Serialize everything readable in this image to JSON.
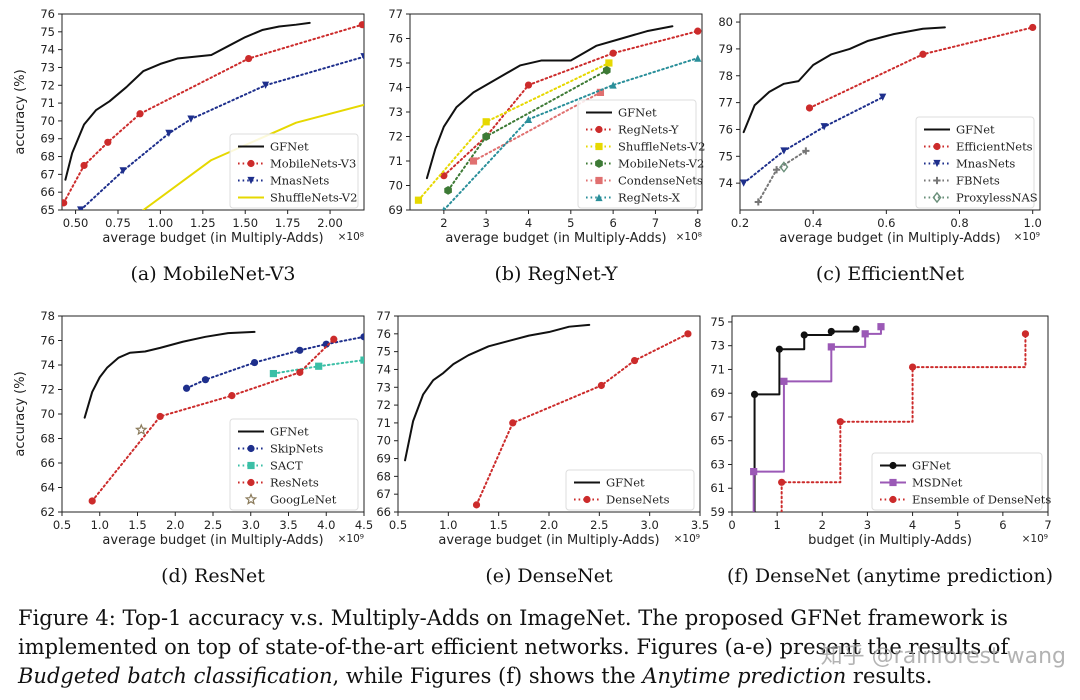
{
  "figure": {
    "caption_parts": [
      "Figure 4: Top-1 accuracy v.s. Multiply-Adds on ImageNet. The proposed GFNet framework is implemented on top of state-of-the-art efficient networks. Figures (a-e) present the results of ",
      "Budgeted batch classification",
      ", while Figures (f) shows the ",
      "Anytime prediction",
      " results."
    ],
    "watermark": "知乎 @rainforest wang"
  },
  "chart_data": [
    {
      "id": "a",
      "type": "line",
      "subtitle": "(a) MobileNet-V3",
      "xlabel": "average budget (in Multiply-Adds)",
      "ylabel": "accuracy (%)",
      "xexp": "×10⁸",
      "xlim": [
        0.42,
        2.2
      ],
      "ylim": [
        65,
        76
      ],
      "xticks": [
        0.5,
        0.75,
        1.0,
        1.25,
        1.5,
        1.75,
        2.0
      ],
      "xtick_labels": [
        "0.50",
        "0.75",
        "1.00",
        "1.25",
        "1.50",
        "1.75",
        "2.00"
      ],
      "yticks": [
        65,
        66,
        67,
        68,
        69,
        70,
        71,
        72,
        73,
        74,
        75,
        76
      ],
      "ytick_labels": [
        "65",
        "66",
        "67",
        "68",
        "69",
        "70",
        "71",
        "72",
        "73",
        "74",
        "75",
        "76"
      ],
      "legend_position": "lower-right",
      "series": [
        {
          "name": "GFNet",
          "color": "#111111",
          "style": "solid",
          "marker": "none",
          "x": [
            0.44,
            0.48,
            0.55,
            0.62,
            0.7,
            0.8,
            0.9,
            1.0,
            1.1,
            1.2,
            1.3,
            1.4,
            1.5,
            1.6,
            1.7,
            1.8,
            1.88
          ],
          "y": [
            66.7,
            68.2,
            69.8,
            70.6,
            71.1,
            71.9,
            72.8,
            73.2,
            73.5,
            73.6,
            73.7,
            74.2,
            74.7,
            75.1,
            75.3,
            75.4,
            75.5
          ]
        },
        {
          "name": "MobileNets-V3",
          "color": "#cc2b2b",
          "style": "dotted",
          "marker": "circle",
          "x": [
            0.43,
            0.55,
            0.69,
            0.88,
            1.52,
            2.19
          ],
          "y": [
            65.4,
            67.5,
            68.8,
            70.4,
            73.5,
            75.4
          ]
        },
        {
          "name": "MnasNets",
          "color": "#1e2f8c",
          "style": "dotted",
          "marker": "triangle-down",
          "x": [
            0.53,
            0.78,
            1.05,
            1.18,
            1.62,
            2.2
          ],
          "y": [
            65.0,
            67.2,
            69.3,
            70.1,
            72.0,
            73.6
          ]
        },
        {
          "name": "ShuffleNets-V2",
          "color": "#e6d800",
          "style": "solid",
          "marker": "none",
          "x": [
            0.9,
            1.3,
            1.8,
            2.2
          ],
          "y": [
            65.0,
            67.8,
            69.9,
            70.9
          ]
        }
      ]
    },
    {
      "id": "b",
      "type": "line",
      "subtitle": "(b) RegNet-Y",
      "xlabel": "average budget (in Multiply-Adds)",
      "ylabel": "",
      "xexp": "×10⁸",
      "xlim": [
        1.2,
        8.1
      ],
      "ylim": [
        69,
        77
      ],
      "xticks": [
        2,
        3,
        4,
        5,
        6,
        7,
        8
      ],
      "xtick_labels": [
        "2",
        "3",
        "4",
        "5",
        "6",
        "7",
        "8"
      ],
      "yticks": [
        69,
        70,
        71,
        72,
        73,
        74,
        75,
        76,
        77
      ],
      "ytick_labels": [
        "69",
        "70",
        "71",
        "72",
        "73",
        "74",
        "75",
        "76",
        "77"
      ],
      "legend_position": "lower-right",
      "series": [
        {
          "name": "GFNet",
          "color": "#111111",
          "style": "solid",
          "marker": "none",
          "x": [
            1.6,
            1.8,
            2.0,
            2.3,
            2.7,
            3.2,
            3.8,
            4.3,
            5.0,
            5.6,
            6.2,
            6.8,
            7.4
          ],
          "y": [
            70.3,
            71.5,
            72.4,
            73.2,
            73.8,
            74.3,
            74.9,
            75.1,
            75.1,
            75.7,
            76.0,
            76.3,
            76.5
          ]
        },
        {
          "name": "RegNets-Y",
          "color": "#cc2b2b",
          "style": "dotted",
          "marker": "circle",
          "x": [
            2.0,
            3.0,
            4.0,
            6.0,
            8.0
          ],
          "y": [
            70.4,
            72.0,
            74.1,
            75.4,
            76.3
          ]
        },
        {
          "name": "ShuffleNets-V2",
          "color": "#e6d800",
          "style": "dotted",
          "marker": "square",
          "x": [
            1.4,
            3.0,
            5.9
          ],
          "y": [
            69.4,
            72.6,
            75.0
          ]
        },
        {
          "name": "MobileNets-V2",
          "color": "#3d7a35",
          "style": "dotted",
          "marker": "hexagon",
          "x": [
            2.1,
            3.0,
            5.85
          ],
          "y": [
            69.8,
            72.0,
            74.7
          ]
        },
        {
          "name": "CondenseNets",
          "color": "#e07070",
          "style": "dotted",
          "marker": "square",
          "x": [
            2.7,
            5.7
          ],
          "y": [
            71.0,
            73.8
          ]
        },
        {
          "name": "RegNets-X",
          "color": "#2a8f9a",
          "style": "dotted",
          "marker": "triangle-up",
          "x": [
            2.0,
            4.0,
            6.0,
            8.0
          ],
          "y": [
            69.0,
            72.7,
            74.1,
            75.2
          ]
        }
      ]
    },
    {
      "id": "c",
      "type": "line",
      "subtitle": "(c) EfficientNet",
      "xlabel": "average budget (in Multiply-Adds)",
      "ylabel": "",
      "xexp": "×10⁹",
      "xlim": [
        0.2,
        1.02
      ],
      "ylim": [
        73,
        80.3
      ],
      "xticks": [
        0.2,
        0.4,
        0.6,
        0.8,
        1.0
      ],
      "xtick_labels": [
        "0.2",
        "0.4",
        "0.6",
        "0.8",
        "1.0"
      ],
      "yticks": [
        74,
        75,
        76,
        77,
        78,
        79,
        80
      ],
      "ytick_labels": [
        "74",
        "75",
        "76",
        "77",
        "78",
        "79",
        "80"
      ],
      "legend_position": "lower-right",
      "series": [
        {
          "name": "GFNet",
          "color": "#111111",
          "style": "solid",
          "marker": "none",
          "x": [
            0.21,
            0.24,
            0.28,
            0.32,
            0.36,
            0.4,
            0.45,
            0.5,
            0.55,
            0.62,
            0.7,
            0.76
          ],
          "y": [
            75.9,
            76.9,
            77.4,
            77.7,
            77.8,
            78.4,
            78.8,
            79.0,
            79.3,
            79.55,
            79.75,
            79.8
          ]
        },
        {
          "name": "EfficientNets",
          "color": "#cc2b2b",
          "style": "dotted",
          "marker": "circle",
          "x": [
            0.39,
            0.7,
            1.0
          ],
          "y": [
            76.8,
            78.8,
            79.8
          ]
        },
        {
          "name": "MnasNets",
          "color": "#1e2f8c",
          "style": "dotted",
          "marker": "triangle-down",
          "x": [
            0.21,
            0.32,
            0.43,
            0.59
          ],
          "y": [
            74.0,
            75.2,
            76.1,
            77.2
          ]
        },
        {
          "name": "FBNets",
          "color": "#777777",
          "style": "dotted",
          "marker": "plus",
          "x": [
            0.25,
            0.3,
            0.38
          ],
          "y": [
            73.3,
            74.5,
            75.2
          ]
        },
        {
          "name": "ProxylessNAS",
          "color": "#6a8f7a",
          "style": "dotted",
          "marker": "diamond",
          "x": [
            0.32
          ],
          "y": [
            74.6
          ]
        }
      ]
    },
    {
      "id": "d",
      "type": "line",
      "subtitle": "(d) ResNet",
      "xlabel": "average budget (in Multiply-Adds)",
      "ylabel": "accuracy (%)",
      "xexp": "×10⁹",
      "xlim": [
        0.5,
        4.5
      ],
      "ylim": [
        62,
        78
      ],
      "xticks": [
        0.5,
        1.0,
        1.5,
        2.0,
        2.5,
        3.0,
        3.5,
        4.0,
        4.5
      ],
      "xtick_labels": [
        "0.5",
        "1.0",
        "1.5",
        "2.0",
        "2.5",
        "3.0",
        "3.5",
        "4.0",
        "4.5"
      ],
      "yticks": [
        62,
        64,
        66,
        68,
        70,
        72,
        74,
        76,
        78
      ],
      "ytick_labels": [
        "62",
        "64",
        "66",
        "68",
        "70",
        "72",
        "74",
        "76",
        "78"
      ],
      "legend_position": "lower-right",
      "series": [
        {
          "name": "GFNet",
          "color": "#111111",
          "style": "solid",
          "marker": "none",
          "x": [
            0.8,
            0.9,
            1.0,
            1.1,
            1.25,
            1.4,
            1.6,
            1.8,
            2.1,
            2.4,
            2.7,
            3.05
          ],
          "y": [
            69.7,
            71.8,
            73.0,
            73.8,
            74.6,
            75.0,
            75.1,
            75.4,
            75.9,
            76.3,
            76.6,
            76.7
          ]
        },
        {
          "name": "SkipNets",
          "color": "#1e2f8c",
          "style": "dotted",
          "marker": "circle",
          "x": [
            2.15,
            2.4,
            3.05,
            3.65,
            4.0,
            4.5
          ],
          "y": [
            72.1,
            72.8,
            74.2,
            75.2,
            75.7,
            76.3
          ]
        },
        {
          "name": "SACT",
          "color": "#3bbfa6",
          "style": "dotted",
          "marker": "square",
          "x": [
            3.3,
            3.9,
            4.5
          ],
          "y": [
            73.3,
            73.9,
            74.4
          ]
        },
        {
          "name": "ResNets",
          "color": "#cc2b2b",
          "style": "dotted",
          "marker": "circle",
          "x": [
            0.9,
            1.8,
            2.75,
            3.65,
            4.1
          ],
          "y": [
            62.9,
            69.8,
            71.5,
            73.4,
            76.1
          ]
        },
        {
          "name": "GoogLeNet",
          "color": "#8a7a5a",
          "style": "none",
          "marker": "star",
          "x": [
            1.55
          ],
          "y": [
            68.7
          ]
        }
      ]
    },
    {
      "id": "e",
      "type": "line",
      "subtitle": "(e) DenseNet",
      "xlabel": "average budget (in Multiply-Adds)",
      "ylabel": "",
      "xexp": "×10⁹",
      "xlim": [
        0.5,
        3.5
      ],
      "ylim": [
        66,
        77
      ],
      "xticks": [
        0.5,
        1.0,
        1.5,
        2.0,
        2.5,
        3.0,
        3.5
      ],
      "xtick_labels": [
        "0.5",
        "1.0",
        "1.5",
        "2.0",
        "2.5",
        "3.0",
        "3.5"
      ],
      "yticks": [
        66,
        67,
        68,
        69,
        70,
        71,
        72,
        73,
        74,
        75,
        76,
        77
      ],
      "ytick_labels": [
        "66",
        "67",
        "68",
        "69",
        "70",
        "71",
        "72",
        "73",
        "74",
        "75",
        "76",
        "77"
      ],
      "legend_position": "lower-right",
      "series": [
        {
          "name": "GFNet",
          "color": "#111111",
          "style": "solid",
          "marker": "none",
          "x": [
            0.57,
            0.65,
            0.75,
            0.85,
            0.95,
            1.05,
            1.2,
            1.4,
            1.6,
            1.8,
            2.0,
            2.2,
            2.4
          ],
          "y": [
            68.9,
            71.1,
            72.6,
            73.4,
            73.8,
            74.3,
            74.8,
            75.3,
            75.6,
            75.9,
            76.1,
            76.4,
            76.5
          ]
        },
        {
          "name": "DenseNets",
          "color": "#cc2b2b",
          "style": "dotted",
          "marker": "circle",
          "x": [
            1.28,
            1.64,
            2.52,
            2.85,
            3.38
          ],
          "y": [
            66.4,
            71.0,
            73.1,
            74.5,
            76.0
          ]
        }
      ]
    },
    {
      "id": "f",
      "type": "line",
      "subtitle": "(f) DenseNet (anytime prediction)",
      "xlabel": "budget (in Multiply-Adds)",
      "ylabel": "",
      "xexp": "×10⁹",
      "xlim": [
        0,
        7
      ],
      "ylim": [
        59,
        75.5
      ],
      "xticks": [
        0,
        1,
        2,
        3,
        4,
        5,
        6,
        7
      ],
      "xtick_labels": [
        "0",
        "1",
        "2",
        "3",
        "4",
        "5",
        "6",
        "7"
      ],
      "yticks": [
        59,
        61,
        63,
        65,
        67,
        69,
        71,
        73,
        75
      ],
      "ytick_labels": [
        "59",
        "61",
        "63",
        "65",
        "67",
        "69",
        "71",
        "73",
        "75"
      ],
      "legend_position": "lower-right",
      "series": [
        {
          "name": "GFNet",
          "color": "#111111",
          "style": "step",
          "marker": "circle",
          "x": [
            0.5,
            1.05,
            1.6,
            2.2,
            2.75
          ],
          "y": [
            68.9,
            72.7,
            73.9,
            74.2,
            74.4
          ],
          "start_y": 59
        },
        {
          "name": "MSDNet",
          "color": "#9b59b6",
          "style": "step",
          "marker": "square",
          "x": [
            0.48,
            1.15,
            2.2,
            2.95,
            3.3
          ],
          "y": [
            62.4,
            70.0,
            72.9,
            74.0,
            74.6
          ],
          "start_y": 59
        },
        {
          "name": "Ensemble of DenseNets",
          "color": "#cc2b2b",
          "style": "step-dotted",
          "marker": "circle",
          "x": [
            1.1,
            2.4,
            4.0,
            6.5
          ],
          "y": [
            61.5,
            66.6,
            71.2,
            74.0
          ],
          "start_y": 59
        }
      ]
    }
  ]
}
